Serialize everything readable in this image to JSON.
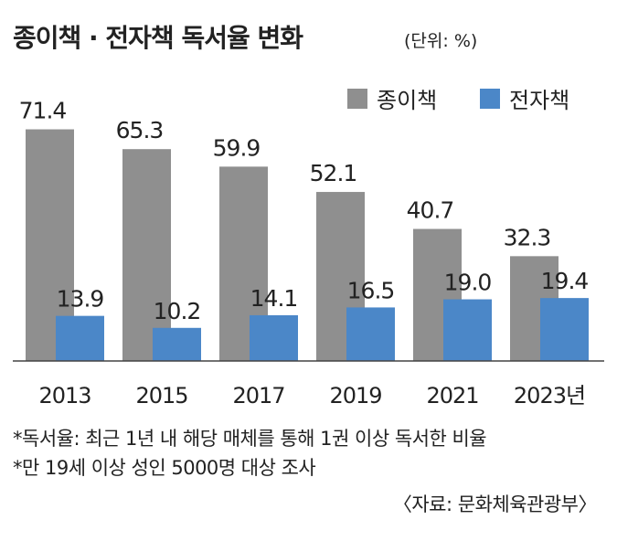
{
  "title": "종이책 · 전자책 독서율 변화",
  "unit": "(단위: %)",
  "chart_data": {
    "type": "bar",
    "categories": [
      "2013",
      "2015",
      "2017",
      "2019",
      "2021",
      "2023년"
    ],
    "series": [
      {
        "name": "종이책",
        "values": [
          71.4,
          65.3,
          59.9,
          52.1,
          40.7,
          32.3
        ],
        "color": "#8f8f8f"
      },
      {
        "name": "전자책",
        "values": [
          13.9,
          10.2,
          14.1,
          16.5,
          19.0,
          19.4
        ],
        "color": "#4b87c8"
      }
    ],
    "value_labels": {
      "paper": [
        "71.4",
        "65.3",
        "59.9",
        "52.1",
        "40.7",
        "32.3"
      ],
      "ebook": [
        "13.9",
        "10.2",
        "14.1",
        "16.5",
        "19.0",
        "19.4"
      ]
    },
    "ylim": [
      0,
      90
    ],
    "grid": false,
    "legend_position": "top-right"
  },
  "notes": [
    "*독서율: 최근 1년 내 해당 매체를 통해 1권 이상 독서한 비율",
    "*만 19세 이상 성인 5000명 대상 조사"
  ],
  "source": "〈자료: 문화체육관광부〉"
}
